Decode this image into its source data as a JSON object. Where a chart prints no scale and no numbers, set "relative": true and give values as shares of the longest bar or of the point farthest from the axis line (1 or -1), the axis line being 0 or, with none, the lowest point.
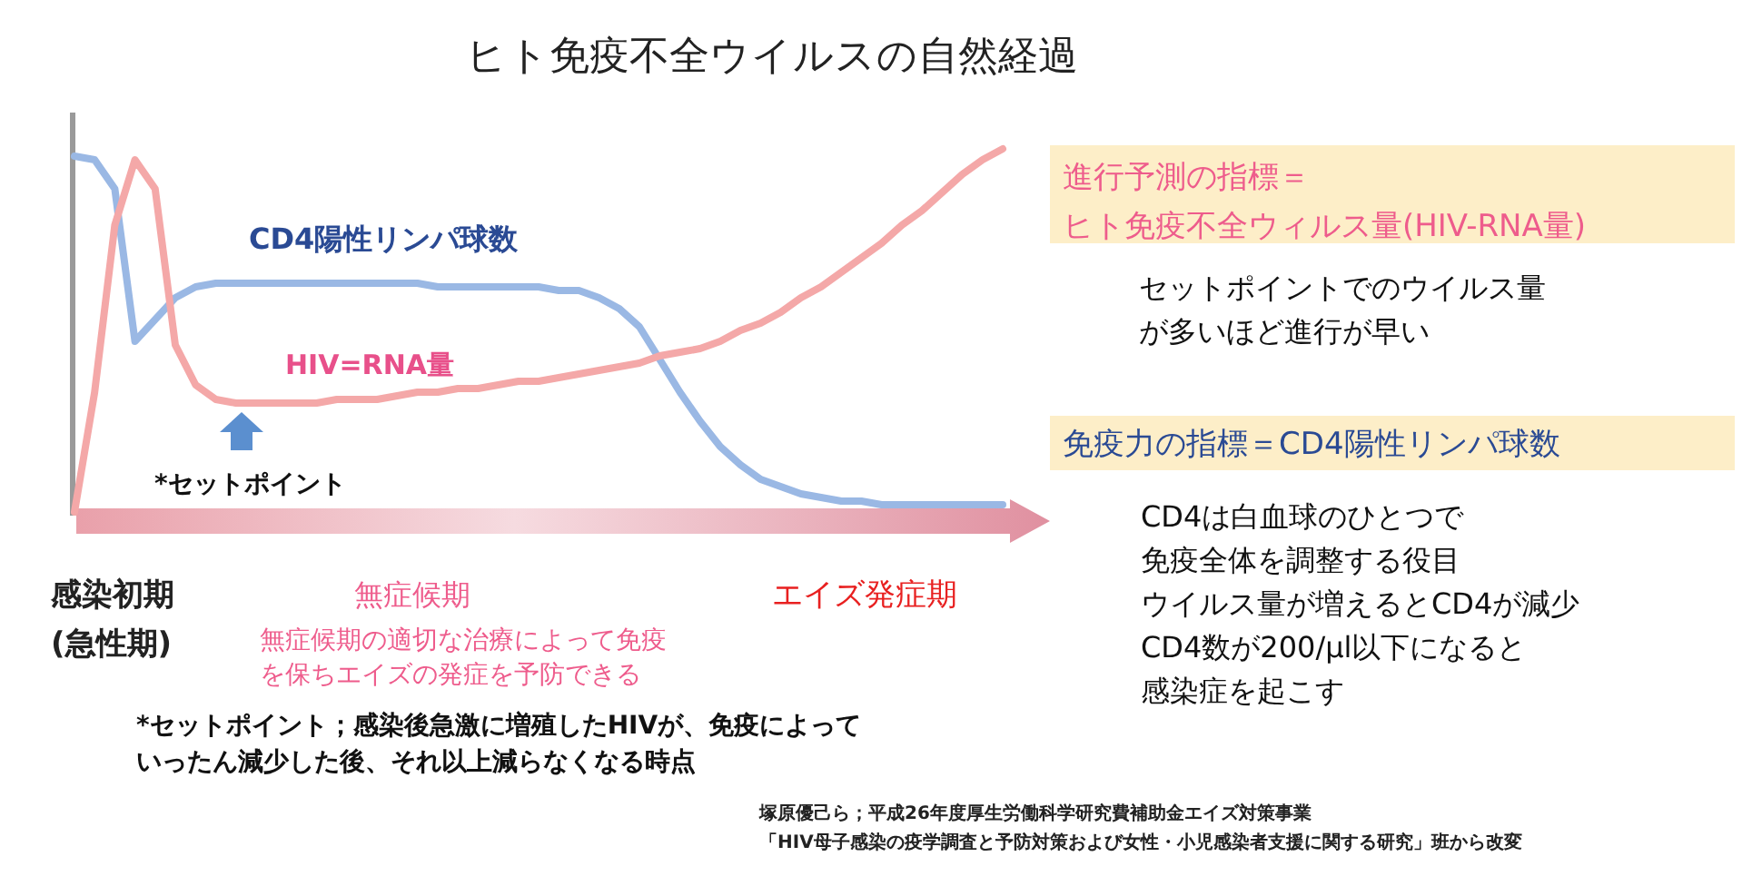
{
  "chart_data": {
    "type": "line",
    "relative": true,
    "title": "ヒト免疫不全ウイルスの自然経過",
    "categories": [
      null,
      null,
      null,
      null,
      null,
      null,
      null,
      null,
      null,
      null,
      null,
      null,
      null,
      null,
      null,
      null,
      null,
      null,
      null,
      null,
      null,
      null,
      null,
      null,
      null,
      null,
      null,
      null,
      null,
      null,
      null,
      null,
      null,
      null,
      null,
      null,
      null,
      null,
      null,
      null,
      null,
      null,
      null,
      null,
      null,
      null,
      null
    ],
    "series": [
      {
        "name": "CD4陽性リンパ球数",
        "color": "#9ab8e4",
        "values": [
          0.98,
          0.97,
          0.89,
          0.47,
          0.53,
          0.59,
          0.62,
          0.63,
          0.63,
          0.63,
          0.63,
          0.63,
          0.63,
          0.63,
          0.63,
          0.63,
          0.63,
          0.63,
          0.62,
          0.62,
          0.62,
          0.62,
          0.62,
          0.62,
          0.61,
          0.61,
          0.59,
          0.56,
          0.51,
          0.42,
          0.33,
          0.25,
          0.18,
          0.13,
          0.09,
          0.07,
          0.05,
          0.04,
          0.03,
          0.03,
          0.02,
          0.02,
          0.02,
          0.02,
          0.02,
          0.02,
          0.02
        ]
      },
      {
        "name": "HIV=RNA量",
        "color": "#f4a8a8",
        "values": [
          0,
          0.33,
          0.79,
          0.97,
          0.89,
          0.46,
          0.35,
          0.31,
          0.3,
          0.3,
          0.3,
          0.3,
          0.3,
          0.31,
          0.31,
          0.31,
          0.32,
          0.33,
          0.33,
          0.34,
          0.34,
          0.35,
          0.36,
          0.36,
          0.37,
          0.38,
          0.39,
          0.4,
          0.41,
          0.43,
          0.44,
          0.45,
          0.47,
          0.5,
          0.52,
          0.55,
          0.59,
          0.62,
          0.66,
          0.7,
          0.74,
          0.79,
          0.83,
          0.88,
          0.93,
          0.97,
          1
        ]
      }
    ],
    "annotations": [
      "*セットポイント",
      "感染初期(急性期)",
      "無症候期",
      "エイズ発症期",
      "無症候期の適切な治療によって免疫を保ちエイズの発症を予防できる",
      "*セットポイント；感染後急激に増殖したHIVが、免疫によっていったん減少した後、それ以上減らなくなる時点",
      "進行予測の指標＝ヒト免疫不全ウィルス量(HIV-RNA量)",
      "セットポイントでのウイルス量が多いほど進行が早い",
      "免疫力の指標＝CD4陽性リンパ球数",
      "CD4は白血球のひとつで免疫全体を調整する役目ウイルス量が増えるとCD4が減少CD4数が200/μl以下になると感染症を起こす",
      "塚原優己ら；平成26年度厚生労働科学研究費補助金エイズ対策事業「HIV母子感染の疫学調査と予防対策および女性・小児感染者支援に関する研究」班から改変"
    ]
  }
}
